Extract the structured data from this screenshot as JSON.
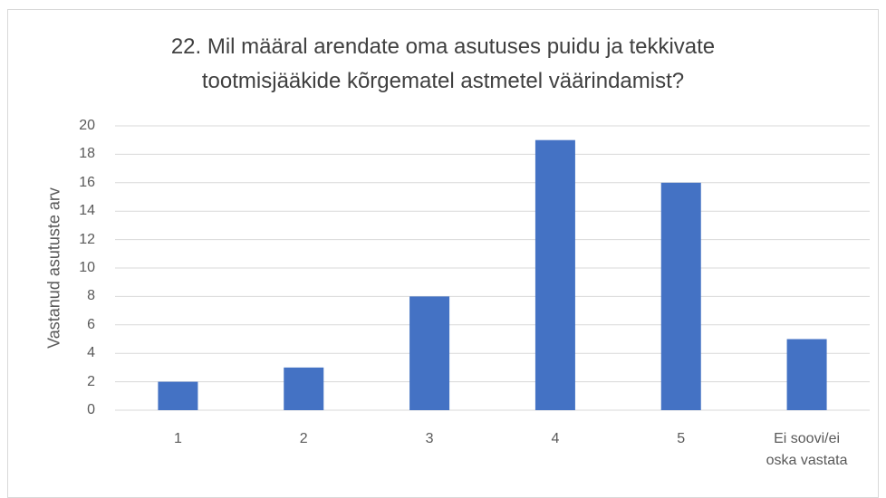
{
  "chart_data": {
    "type": "bar",
    "title": "22. Mil määral arendate oma asutuses puidu ja tekkivate tootmisjääkide kõrgematel astmetel väärindamist?",
    "y_label": "Vastanud asutuste arv",
    "categories": [
      "1",
      "2",
      "3",
      "4",
      "5",
      "Ei soovi/ei oska vastata"
    ],
    "values": [
      2,
      3,
      8,
      19,
      16,
      5
    ],
    "color": "#4472c4",
    "ylim": [
      0,
      20
    ],
    "yticks": [
      0,
      2,
      4,
      6,
      8,
      10,
      12,
      14,
      16,
      18,
      20
    ],
    "grid": true
  }
}
